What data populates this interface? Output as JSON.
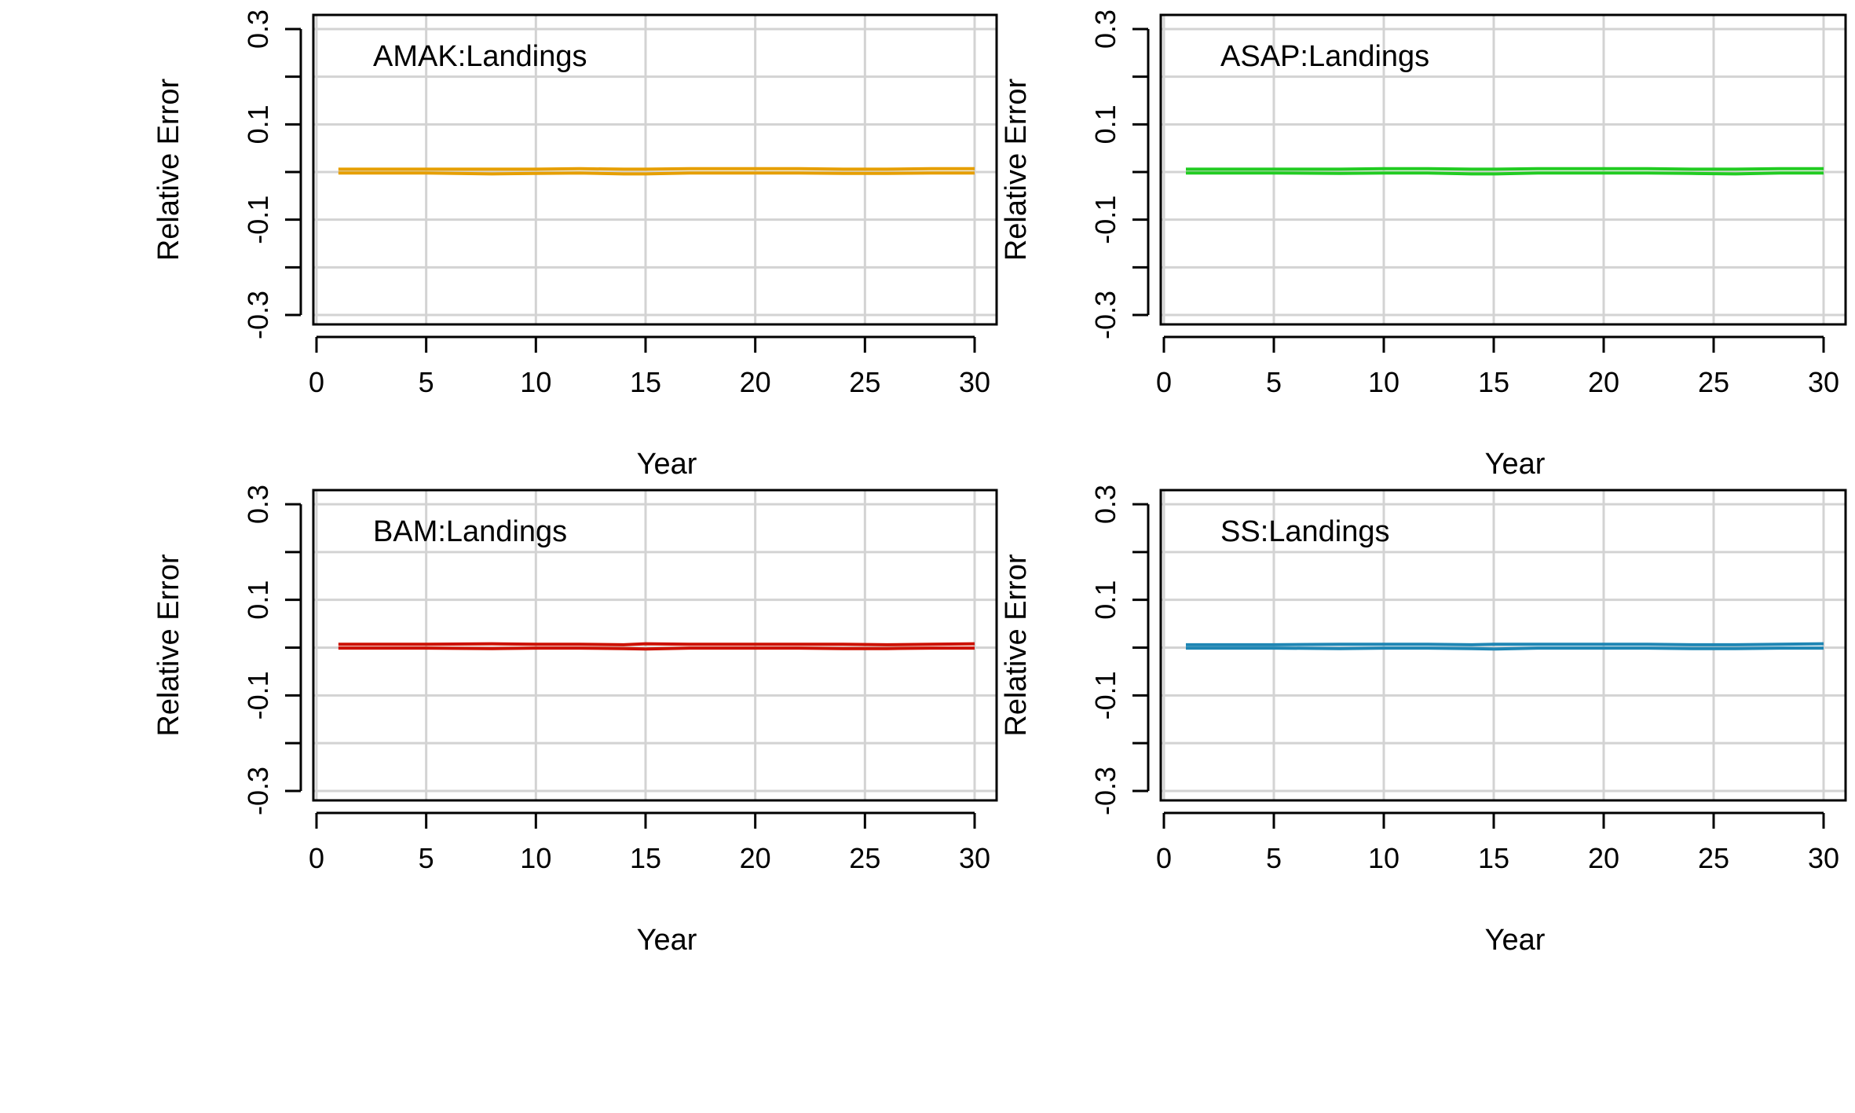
{
  "chart_data": [
    {
      "type": "line",
      "title": "AMAK:Landings",
      "xlabel": "Year",
      "ylabel": "Relative Error",
      "xlim": [
        0,
        30
      ],
      "ylim": [
        -0.3,
        0.3
      ],
      "xticks": [
        "0",
        "5",
        "10",
        "15",
        "20",
        "25",
        "30"
      ],
      "yticks": [
        "-0.3",
        "-0.1",
        "0.1",
        "0.3"
      ],
      "grid": true,
      "color": "#E69F00",
      "series": [
        {
          "x": [
            1,
            5,
            8,
            10,
            12,
            14,
            15,
            17,
            20,
            22,
            24,
            26,
            28,
            30
          ],
          "values": [
            0.006,
            0.006,
            0.006,
            0.006,
            0.007,
            0.006,
            0.006,
            0.007,
            0.007,
            0.007,
            0.006,
            0.006,
            0.007,
            0.007
          ]
        },
        {
          "x": [
            1,
            5,
            8,
            10,
            12,
            14,
            15,
            17,
            20,
            22,
            24,
            26,
            28,
            30
          ],
          "values": [
            -0.002,
            -0.002,
            -0.004,
            -0.003,
            -0.002,
            -0.004,
            -0.004,
            -0.002,
            -0.002,
            -0.002,
            -0.003,
            -0.003,
            -0.002,
            -0.002
          ]
        }
      ]
    },
    {
      "type": "line",
      "title": "ASAP:Landings",
      "xlabel": "Year",
      "ylabel": "Relative Error",
      "xlim": [
        0,
        30
      ],
      "ylim": [
        -0.3,
        0.3
      ],
      "xticks": [
        "0",
        "5",
        "10",
        "15",
        "20",
        "25",
        "30"
      ],
      "yticks": [
        "-0.3",
        "-0.1",
        "0.1",
        "0.3"
      ],
      "grid": true,
      "color": "#22CC22",
      "series": [
        {
          "x": [
            1,
            5,
            8,
            10,
            12,
            14,
            15,
            17,
            20,
            22,
            24,
            26,
            28,
            30
          ],
          "values": [
            0.006,
            0.006,
            0.006,
            0.007,
            0.007,
            0.006,
            0.006,
            0.007,
            0.007,
            0.007,
            0.006,
            0.006,
            0.007,
            0.007
          ]
        },
        {
          "x": [
            1,
            5,
            8,
            10,
            12,
            14,
            15,
            17,
            20,
            22,
            24,
            26,
            28,
            30
          ],
          "values": [
            -0.002,
            -0.002,
            -0.003,
            -0.002,
            -0.002,
            -0.004,
            -0.004,
            -0.002,
            -0.002,
            -0.002,
            -0.003,
            -0.004,
            -0.002,
            -0.002
          ]
        }
      ]
    },
    {
      "type": "line",
      "title": "BAM:Landings",
      "xlabel": "Year",
      "ylabel": "Relative Error",
      "xlim": [
        0,
        30
      ],
      "ylim": [
        -0.3,
        0.3
      ],
      "xticks": [
        "0",
        "5",
        "10",
        "15",
        "20",
        "25",
        "30"
      ],
      "yticks": [
        "-0.3",
        "-0.1",
        "0.1",
        "0.3"
      ],
      "grid": true,
      "color": "#CC1100",
      "series": [
        {
          "x": [
            1,
            5,
            8,
            10,
            12,
            14,
            15,
            17,
            20,
            22,
            24,
            26,
            28,
            30
          ],
          "values": [
            0.007,
            0.007,
            0.008,
            0.007,
            0.007,
            0.006,
            0.008,
            0.007,
            0.007,
            0.007,
            0.007,
            0.006,
            0.007,
            0.008
          ]
        },
        {
          "x": [
            1,
            5,
            8,
            10,
            12,
            14,
            15,
            17,
            20,
            22,
            24,
            26,
            28,
            30
          ],
          "values": [
            -0.001,
            -0.001,
            -0.002,
            -0.001,
            -0.001,
            -0.002,
            -0.003,
            -0.001,
            -0.001,
            -0.001,
            -0.002,
            -0.002,
            -0.001,
            -0.001
          ]
        }
      ]
    },
    {
      "type": "line",
      "title": "SS:Landings",
      "xlabel": "Year",
      "ylabel": "Relative Error",
      "xlim": [
        0,
        30
      ],
      "ylim": [
        -0.3,
        0.3
      ],
      "xticks": [
        "0",
        "5",
        "10",
        "15",
        "20",
        "25",
        "30"
      ],
      "yticks": [
        "-0.3",
        "-0.1",
        "0.1",
        "0.3"
      ],
      "grid": true,
      "color": "#1F86B4",
      "series": [
        {
          "x": [
            1,
            5,
            8,
            10,
            12,
            14,
            15,
            17,
            20,
            22,
            24,
            26,
            28,
            30
          ],
          "values": [
            0.006,
            0.006,
            0.007,
            0.007,
            0.007,
            0.006,
            0.007,
            0.007,
            0.007,
            0.007,
            0.006,
            0.006,
            0.007,
            0.008
          ]
        },
        {
          "x": [
            1,
            5,
            8,
            10,
            12,
            14,
            15,
            17,
            20,
            22,
            24,
            26,
            28,
            30
          ],
          "values": [
            -0.001,
            -0.001,
            -0.002,
            -0.001,
            -0.001,
            -0.002,
            -0.003,
            -0.001,
            -0.001,
            -0.001,
            -0.002,
            -0.002,
            -0.001,
            -0.001
          ]
        }
      ]
    }
  ]
}
